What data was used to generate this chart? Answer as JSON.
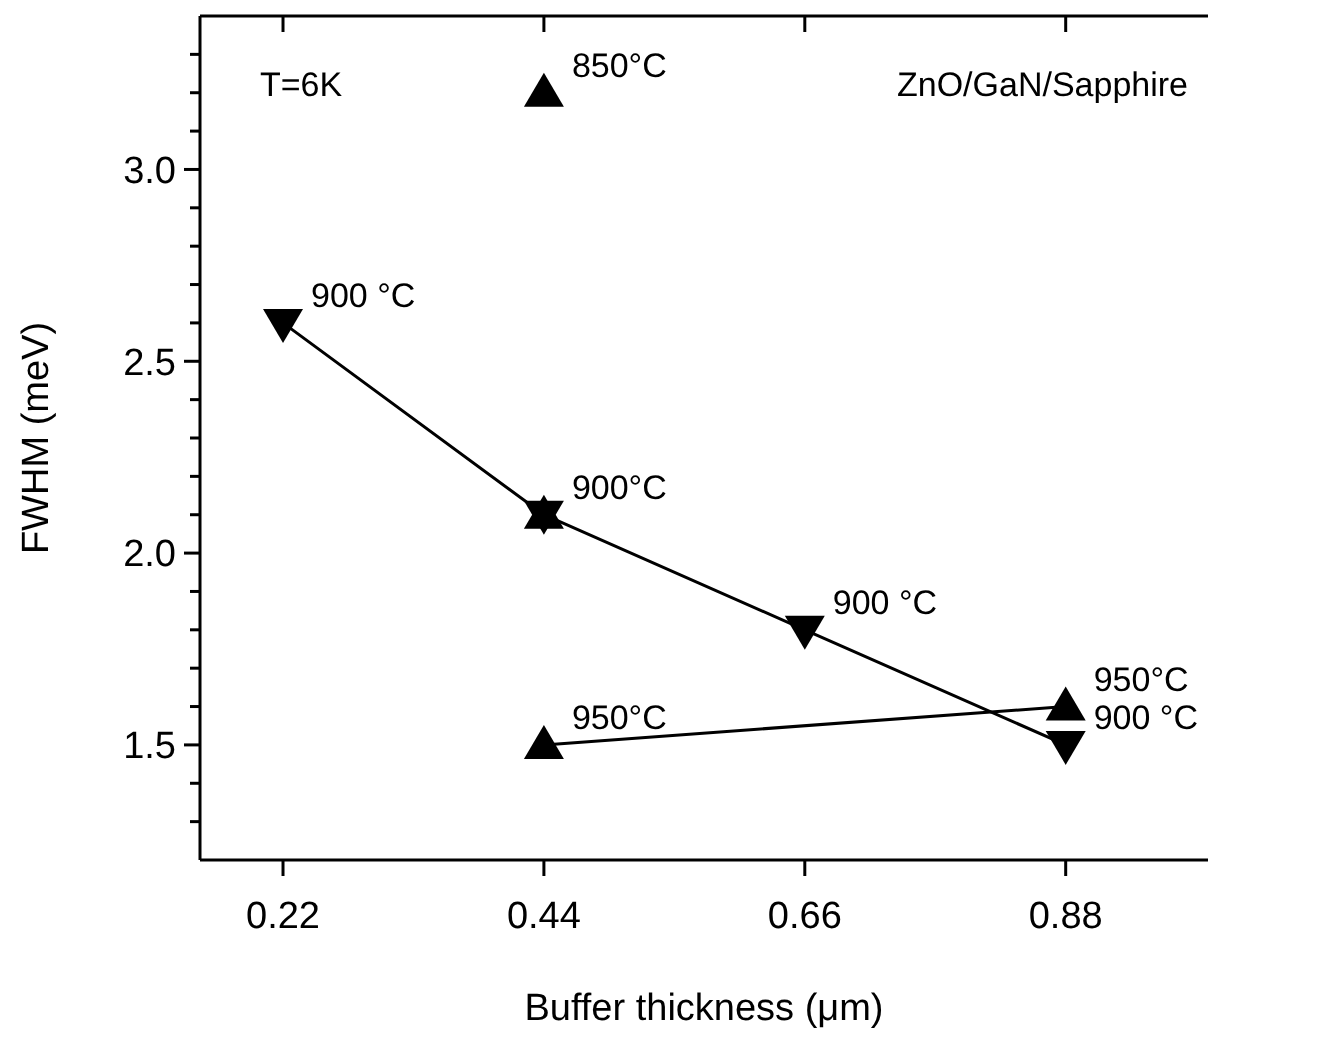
{
  "chart_data": {
    "type": "line",
    "xlabel": "Buffer thickness (μm)",
    "ylabel": "FWHM (meV)",
    "xlim": [
      0.15,
      1.0
    ],
    "ylim": [
      1.2,
      3.4
    ],
    "xticks": [
      0.22,
      0.44,
      0.66,
      0.88
    ],
    "yticks": [
      {
        "value": 1.3,
        "label": null
      },
      {
        "value": 1.4,
        "label": null
      },
      {
        "value": 1.5,
        "label": "1.5"
      },
      {
        "value": 1.6,
        "label": null
      },
      {
        "value": 1.7,
        "label": null
      },
      {
        "value": 1.8,
        "label": null
      },
      {
        "value": 1.9,
        "label": null
      },
      {
        "value": 2.0,
        "label": "2.0"
      },
      {
        "value": 2.1,
        "label": null
      },
      {
        "value": 2.2,
        "label": null
      },
      {
        "value": 2.3,
        "label": null
      },
      {
        "value": 2.4,
        "label": null
      },
      {
        "value": 2.5,
        "label": "2.5"
      },
      {
        "value": 2.6,
        "label": null
      },
      {
        "value": 2.7,
        "label": null
      },
      {
        "value": 2.8,
        "label": null
      },
      {
        "value": 2.9,
        "label": null
      },
      {
        "value": 3.0,
        "label": "3.0"
      },
      {
        "value": 3.1,
        "label": null
      },
      {
        "value": 3.2,
        "label": null
      },
      {
        "value": 3.3,
        "label": null
      }
    ],
    "grid": false,
    "series": [
      {
        "color": "#000000",
        "marker": "triangle-down",
        "x": [
          0.22,
          0.44,
          0.66,
          0.88
        ],
        "values": [
          2.6,
          2.1,
          1.8,
          1.5
        ]
      },
      {
        "color": "#000000",
        "marker": "triangle",
        "x": [
          0.44,
          0.88
        ],
        "values": [
          1.5,
          1.6
        ]
      },
      {
        "type": "scatter",
        "color": "#000000",
        "marker": "triangle",
        "x": [
          0.44,
          0.44
        ],
        "values": [
          3.2,
          2.1
        ]
      }
    ],
    "annotations": [
      "T=6K",
      "ZnO/GaN/Sapphire",
      {
        "text": "900 °C",
        "x": 0.22,
        "y": 2.6
      },
      {
        "text": "900°C",
        "x": 0.44,
        "y": 2.1
      },
      {
        "text": "900 °C",
        "x": 0.66,
        "y": 1.8
      },
      {
        "text": "900 °C",
        "x": 0.88,
        "y": 1.5
      },
      {
        "text": "950°C",
        "x": 0.44,
        "y": 1.5
      },
      {
        "text": "950°C",
        "x": 0.88,
        "y": 1.6
      },
      {
        "text": "850°C",
        "x": 0.44,
        "y": 3.2
      }
    ]
  }
}
